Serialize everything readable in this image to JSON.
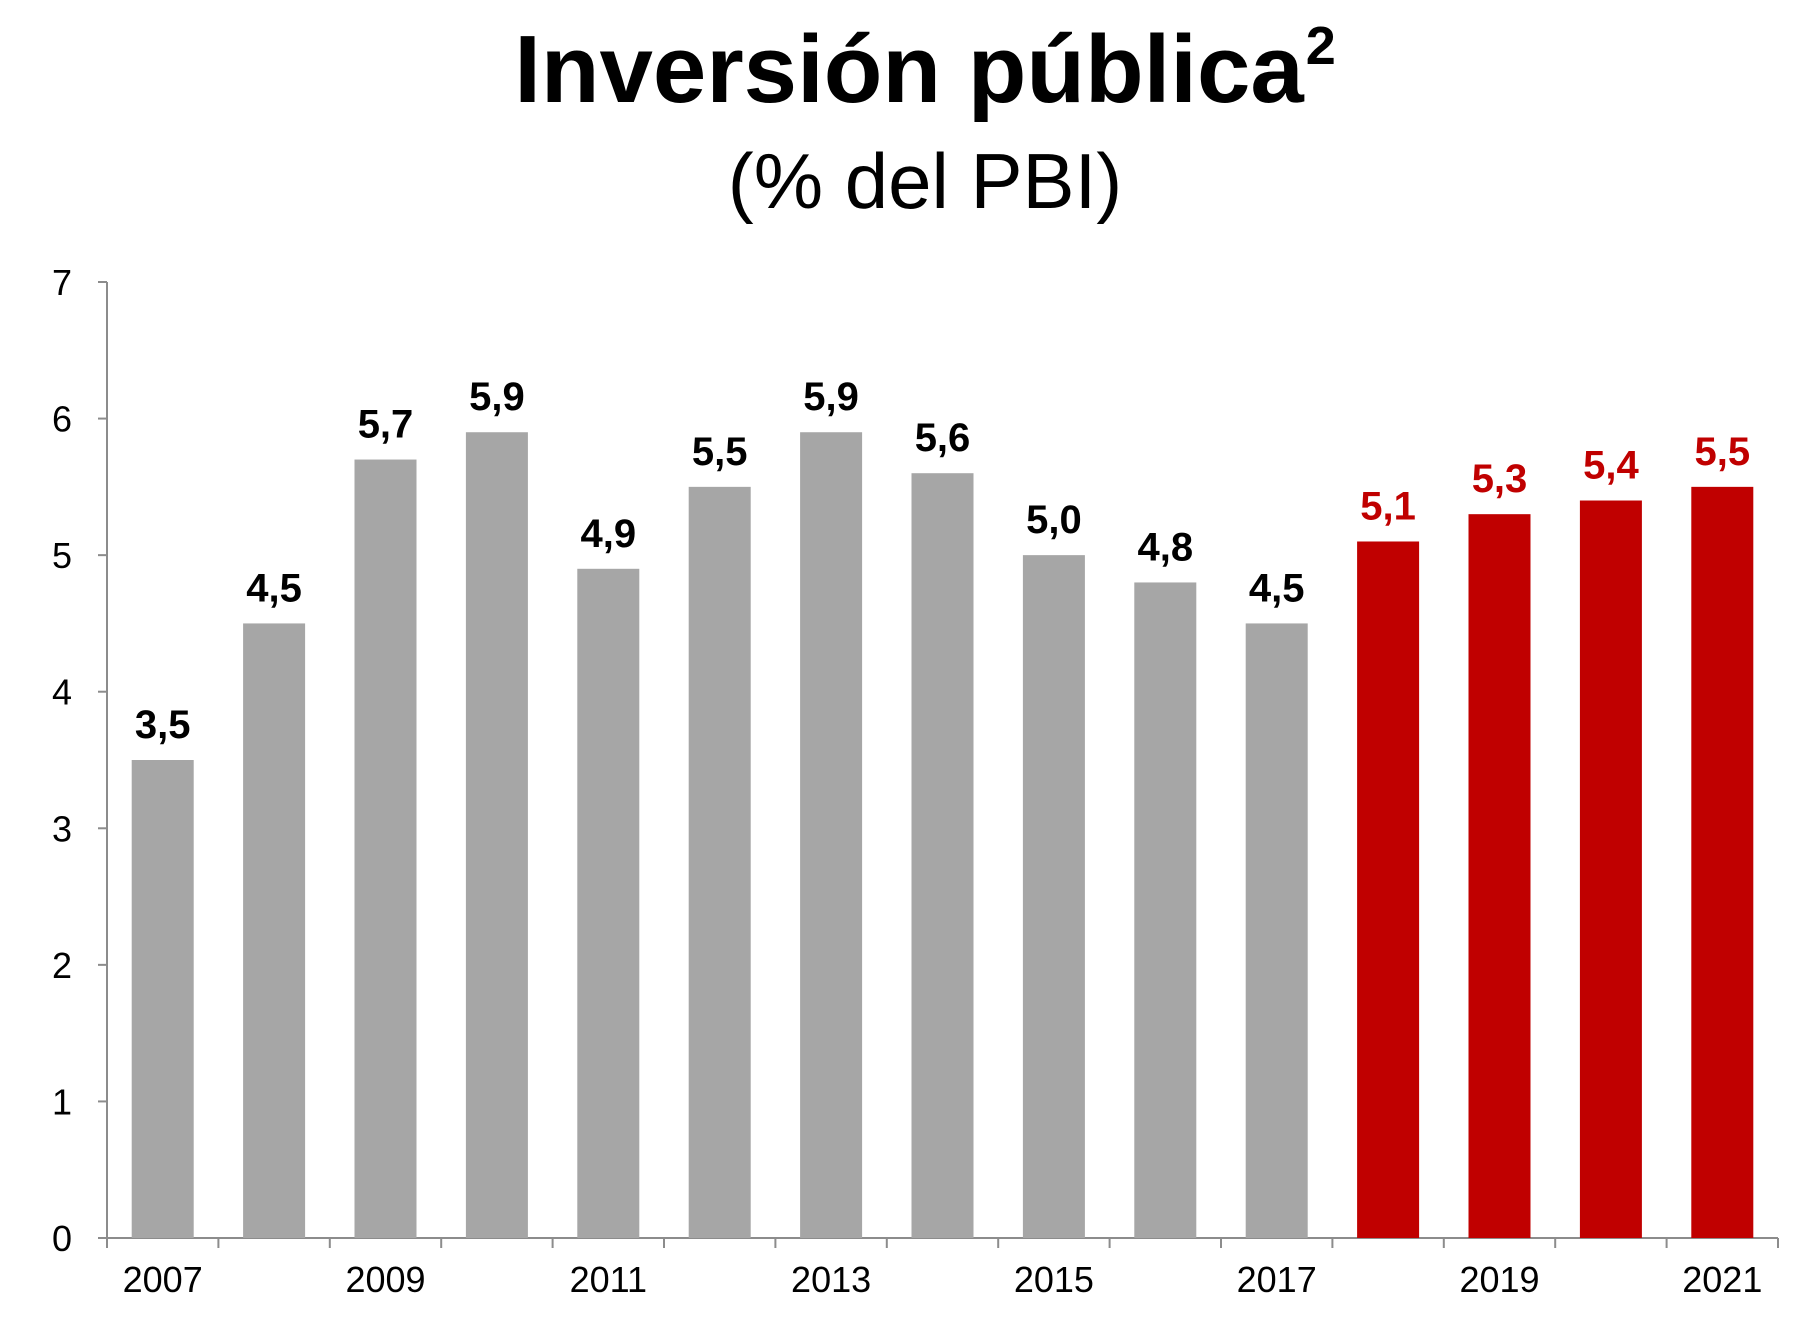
{
  "chart_data": {
    "type": "bar",
    "title": "Inversión pública",
    "title_superscript": "2",
    "subtitle": "(% del PBI)",
    "xlabel": "",
    "ylabel": "",
    "ylim": [
      0,
      7
    ],
    "y_ticks": [
      "0",
      "1",
      "2",
      "3",
      "4",
      "5",
      "6",
      "7"
    ],
    "categories": [
      "2007",
      "2008",
      "2009",
      "2010",
      "2011",
      "2012",
      "2013",
      "2014",
      "2015",
      "2016",
      "2017",
      "2018",
      "2019",
      "2020",
      "2021"
    ],
    "x_tick_labels": [
      "2007",
      "",
      "2009",
      "",
      "2011",
      "",
      "2013",
      "",
      "2015",
      "",
      "2017",
      "",
      "2019",
      "",
      "2021"
    ],
    "values": [
      3.5,
      4.5,
      5.7,
      5.9,
      4.9,
      5.5,
      5.9,
      5.6,
      5.0,
      4.8,
      4.5,
      5.1,
      5.3,
      5.4,
      5.5
    ],
    "data_labels": [
      "3,5",
      "4,5",
      "5,7",
      "5,9",
      "4,9",
      "5,5",
      "5,9",
      "5,6",
      "5,0",
      "4,8",
      "4,5",
      "5,1",
      "5,3",
      "5,4",
      "5,5"
    ],
    "grid": false,
    "legend": "none",
    "colors": {
      "historical_bar": "#a6a6a6",
      "projected_bar": "#c00000",
      "historical_label": "#000000",
      "projected_label": "#c00000",
      "axis": "#8c8c8c"
    },
    "projected_from_index": 11
  }
}
